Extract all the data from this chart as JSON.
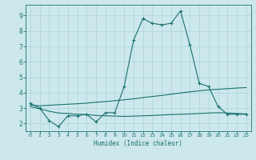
{
  "xlabel": "Humidex (Indice chaleur)",
  "ylabel": "",
  "background_color": "#cce8ec",
  "line_color": "#1a7070",
  "grid_color": "#aad4d8",
  "xlim": [
    -0.5,
    23.5
  ],
  "ylim": [
    1.5,
    9.7
  ],
  "xticks": [
    0,
    1,
    2,
    3,
    4,
    5,
    6,
    7,
    8,
    9,
    10,
    11,
    12,
    13,
    14,
    15,
    16,
    17,
    18,
    19,
    20,
    21,
    22,
    23
  ],
  "yticks": [
    2,
    3,
    4,
    5,
    6,
    7,
    8,
    9
  ],
  "line1_x": [
    0,
    1,
    2,
    3,
    4,
    5,
    6,
    7,
    8,
    9,
    10,
    11,
    12,
    13,
    14,
    15,
    16,
    17,
    18,
    19,
    20,
    21,
    22,
    23
  ],
  "line1_y": [
    3.3,
    3.0,
    2.2,
    1.8,
    2.5,
    2.5,
    2.6,
    2.1,
    2.7,
    2.7,
    4.4,
    7.4,
    8.8,
    8.5,
    8.4,
    8.5,
    9.3,
    7.1,
    4.6,
    4.4,
    3.1,
    2.6,
    2.6,
    2.6
  ],
  "line2_x": [
    0,
    1,
    2,
    3,
    4,
    5,
    6,
    7,
    8,
    9,
    10,
    11,
    12,
    13,
    14,
    15,
    16,
    17,
    18,
    19,
    20,
    21,
    22,
    23
  ],
  "line2_y": [
    3.2,
    3.15,
    3.18,
    3.22,
    3.25,
    3.28,
    3.32,
    3.38,
    3.42,
    3.48,
    3.54,
    3.6,
    3.68,
    3.75,
    3.82,
    3.9,
    3.98,
    4.05,
    4.12,
    4.18,
    4.22,
    4.26,
    4.3,
    4.33
  ],
  "line3_x": [
    0,
    1,
    2,
    3,
    4,
    5,
    6,
    7,
    8,
    9,
    10,
    11,
    12,
    13,
    14,
    15,
    16,
    17,
    18,
    19,
    20,
    21,
    22,
    23
  ],
  "line3_y": [
    3.1,
    2.95,
    2.8,
    2.68,
    2.65,
    2.6,
    2.58,
    2.52,
    2.5,
    2.48,
    2.46,
    2.48,
    2.5,
    2.52,
    2.55,
    2.58,
    2.6,
    2.62,
    2.65,
    2.68,
    2.7,
    2.68,
    2.65,
    2.62
  ]
}
